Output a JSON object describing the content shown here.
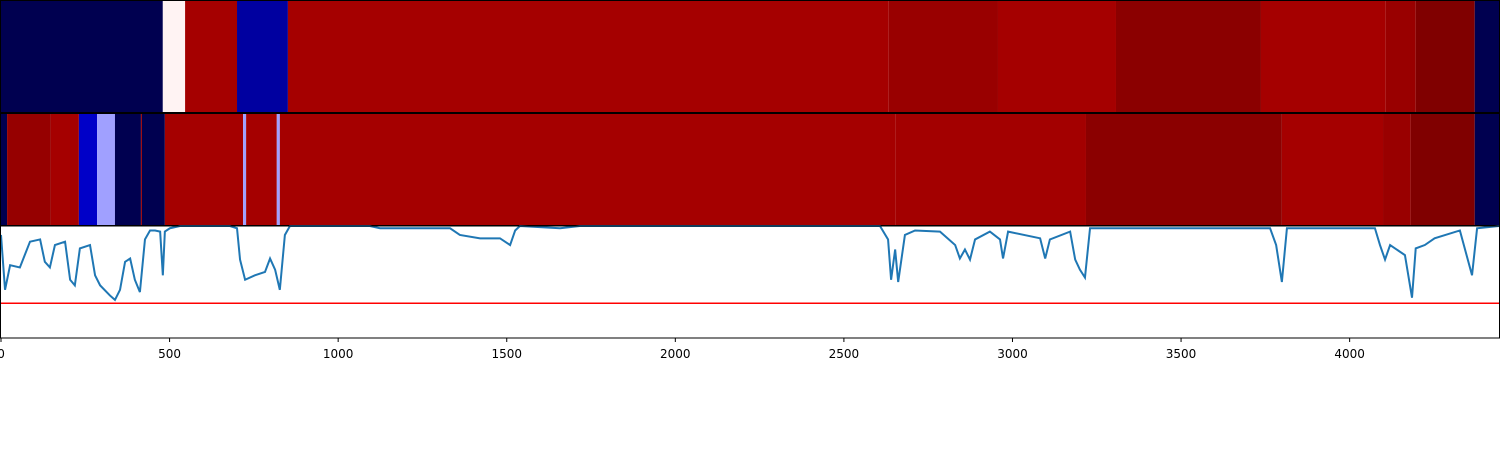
{
  "chart_data": {
    "type": "strips-line",
    "xlim": [
      0,
      4443
    ],
    "xticks": [
      0,
      500,
      1000,
      1500,
      2000,
      2500,
      3000,
      3500,
      4000
    ],
    "strips": [
      {
        "segments": [
          {
            "start": 0,
            "end": 480,
            "color": "#000050"
          },
          {
            "start": 480,
            "end": 546,
            "color": "#fff3f3"
          },
          {
            "start": 546,
            "end": 700,
            "color": "#a50000"
          },
          {
            "start": 700,
            "end": 851,
            "color": "#0000a0"
          },
          {
            "start": 851,
            "end": 2633,
            "color": "#a50000"
          },
          {
            "start": 2633,
            "end": 2957,
            "color": "#990000"
          },
          {
            "start": 2957,
            "end": 3307,
            "color": "#a50000"
          },
          {
            "start": 3307,
            "end": 3737,
            "color": "#8b0000"
          },
          {
            "start": 3737,
            "end": 4107,
            "color": "#a50000"
          },
          {
            "start": 4107,
            "end": 4196,
            "color": "#990000"
          },
          {
            "start": 4196,
            "end": 4371,
            "color": "#800000"
          },
          {
            "start": 4371,
            "end": 4443,
            "color": "#000050"
          }
        ]
      },
      {
        "segments": [
          {
            "start": 0,
            "end": 18,
            "color": "#000050"
          },
          {
            "start": 18,
            "end": 148,
            "color": "#960000"
          },
          {
            "start": 148,
            "end": 231,
            "color": "#a50000"
          },
          {
            "start": 231,
            "end": 285,
            "color": "#0000c8"
          },
          {
            "start": 285,
            "end": 338,
            "color": "#a0a0ff"
          },
          {
            "start": 338,
            "end": 415,
            "color": "#000050"
          },
          {
            "start": 415,
            "end": 418,
            "color": "#a50000"
          },
          {
            "start": 418,
            "end": 486,
            "color": "#000050"
          },
          {
            "start": 486,
            "end": 718,
            "color": "#a50000"
          },
          {
            "start": 718,
            "end": 727,
            "color": "#a0a0ff"
          },
          {
            "start": 727,
            "end": 818,
            "color": "#a50000"
          },
          {
            "start": 818,
            "end": 827,
            "color": "#a0a0ff"
          },
          {
            "start": 827,
            "end": 2654,
            "color": "#a50000"
          },
          {
            "start": 2654,
            "end": 3218,
            "color": "#a30000"
          },
          {
            "start": 3218,
            "end": 3799,
            "color": "#8b0000"
          },
          {
            "start": 3799,
            "end": 4099,
            "color": "#a50000"
          },
          {
            "start": 4099,
            "end": 4181,
            "color": "#990000"
          },
          {
            "start": 4181,
            "end": 4371,
            "color": "#800000"
          },
          {
            "start": 4371,
            "end": 4443,
            "color": "#000050"
          }
        ]
      }
    ],
    "ylim": [
      0,
      1
    ],
    "hline": {
      "value": 0.31,
      "color": "#ff0000"
    },
    "series": [
      {
        "color": "#1f77b4",
        "x": [
          0,
          12,
          27,
          56,
          86,
          116,
          130,
          145,
          160,
          190,
          205,
          219,
          234,
          264,
          279,
          294,
          323,
          338,
          353,
          368,
          383,
          397,
          412,
          427,
          442,
          457,
          472,
          480,
          486,
          501,
          531,
          679,
          700,
          709,
          724,
          753,
          783,
          798,
          813,
          827,
          842,
          857,
          1094,
          1124,
          1332,
          1361,
          1421,
          1480,
          1510,
          1525,
          1539,
          1658,
          1717,
          2607,
          2631,
          2640,
          2652,
          2661,
          2681,
          2711,
          2785,
          2830,
          2844,
          2859,
          2874,
          2889,
          2933,
          2963,
          2972,
          2987,
          3082,
          3097,
          3111,
          3171,
          3186,
          3200,
          3215,
          3230,
          3764,
          3782,
          3799,
          3814,
          4075,
          4090,
          4105,
          4120,
          4164,
          4185,
          4196,
          4223,
          4252,
          4327,
          4363,
          4378,
          4443
        ],
        "values": [
          0.92,
          0.43,
          0.65,
          0.63,
          0.86,
          0.88,
          0.68,
          0.63,
          0.83,
          0.86,
          0.52,
          0.47,
          0.8,
          0.83,
          0.56,
          0.47,
          0.38,
          0.34,
          0.43,
          0.68,
          0.71,
          0.52,
          0.41,
          0.88,
          0.96,
          0.96,
          0.95,
          0.56,
          0.95,
          0.98,
          1.0,
          1.0,
          0.98,
          0.7,
          0.52,
          0.56,
          0.59,
          0.71,
          0.61,
          0.43,
          0.92,
          1.0,
          1.0,
          0.98,
          0.98,
          0.92,
          0.89,
          0.89,
          0.83,
          0.96,
          1.0,
          0.98,
          1.0,
          1.0,
          0.88,
          0.52,
          0.79,
          0.5,
          0.92,
          0.96,
          0.95,
          0.83,
          0.71,
          0.79,
          0.7,
          0.88,
          0.95,
          0.88,
          0.71,
          0.95,
          0.89,
          0.71,
          0.88,
          0.95,
          0.7,
          0.61,
          0.54,
          0.98,
          0.98,
          0.83,
          0.5,
          0.98,
          0.98,
          0.83,
          0.7,
          0.83,
          0.74,
          0.36,
          0.8,
          0.83,
          0.89,
          0.96,
          0.56,
          0.98,
          1.0
        ]
      }
    ]
  }
}
